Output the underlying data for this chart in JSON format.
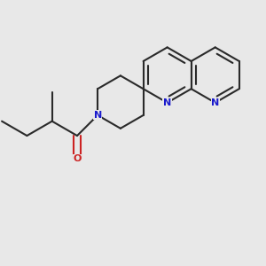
{
  "bg": "#e8e8e8",
  "bc": "#2a2a2a",
  "nc": "#1a1acc",
  "oc": "#cc2222",
  "lw": 1.5,
  "figsize": [
    3.0,
    3.0
  ],
  "dpi": 100,
  "xlim": [
    0,
    10
  ],
  "ylim": [
    0,
    10
  ]
}
